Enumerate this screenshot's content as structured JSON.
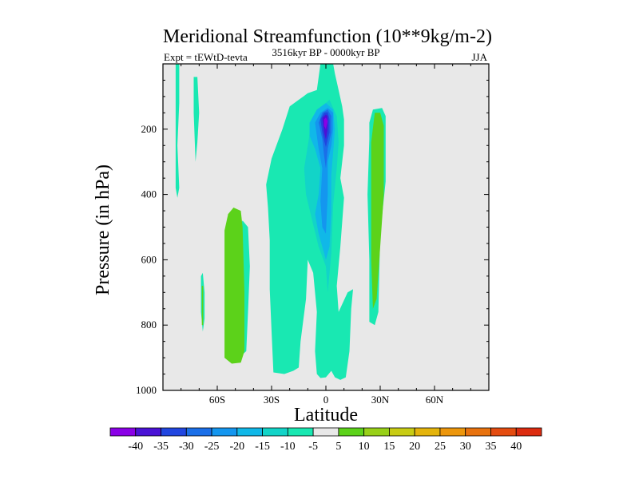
{
  "chart_data": {
    "type": "heatmap",
    "title": "Meridional Streamfunction (10**9kg/m-2)",
    "subtitle_left": "Expt = tEWtD-tevta",
    "subtitle_center": "3516kyr BP - 0000kyr BP",
    "subtitle_right": "JJA",
    "xlabel": "Latitude",
    "ylabel": "Pressure (in hPa)",
    "xlim": [
      -90,
      90
    ],
    "ylim": [
      1000,
      0
    ],
    "x_ticks": [
      {
        "value": -60,
        "label": "60S"
      },
      {
        "value": -30,
        "label": "30S"
      },
      {
        "value": 0,
        "label": "0"
      },
      {
        "value": 30,
        "label": "30N"
      },
      {
        "value": 60,
        "label": "60N"
      }
    ],
    "y_ticks": [
      {
        "value": 200,
        "label": "200"
      },
      {
        "value": 400,
        "label": "400"
      },
      {
        "value": 600,
        "label": "600"
      },
      {
        "value": 800,
        "label": "800"
      },
      {
        "value": 1000,
        "label": "1000"
      }
    ],
    "colorbar": {
      "levels": [
        -40,
        -35,
        -30,
        -25,
        -20,
        -15,
        -10,
        -5,
        5,
        10,
        15,
        20,
        25,
        30,
        35,
        40
      ],
      "labels": [
        "-40",
        "-35",
        "-30",
        "-25",
        "-20",
        "-15",
        "-10",
        "-5",
        "5",
        "10",
        "15",
        "20",
        "25",
        "30",
        "35",
        "40"
      ],
      "colors": [
        "#8a00e6",
        "#4a12d6",
        "#2146e0",
        "#1b6fe8",
        "#1496ef",
        "#10b8e8",
        "#12d4c8",
        "#19e8b2",
        "#e8e8e8",
        "#5cd21a",
        "#98d018",
        "#c8cc14",
        "#e4b40c",
        "#ec960c",
        "#e8720e",
        "#e44c10",
        "#dc2c10"
      ]
    },
    "regions": [
      {
        "name": "band-lon-80-neg5",
        "level": -5,
        "points": [
          [
            -83,
            0
          ],
          [
            -81,
            0
          ],
          [
            -81,
            120
          ],
          [
            -82,
            250
          ],
          [
            -81,
            380
          ],
          [
            -82,
            410
          ],
          [
            -83,
            380
          ],
          [
            -83,
            200
          ]
        ]
      },
      {
        "name": "band-lon-72-neg5",
        "level": -5,
        "points": [
          [
            -73,
            40
          ],
          [
            -71,
            40
          ],
          [
            -70,
            150
          ],
          [
            -71,
            240
          ],
          [
            -72,
            300
          ],
          [
            -73,
            150
          ]
        ]
      },
      {
        "name": "band-lon-68-neg5",
        "level": -5,
        "points": [
          [
            -69,
            650
          ],
          [
            -68,
            640
          ],
          [
            -67,
            700
          ],
          [
            -67,
            780
          ],
          [
            -68,
            820
          ],
          [
            -69,
            760
          ]
        ]
      },
      {
        "name": "band-lon-68-pos5",
        "level": 5,
        "points": [
          [
            -68.5,
            680
          ],
          [
            -67.8,
            680
          ],
          [
            -67.8,
            800
          ],
          [
            -68.5,
            800
          ]
        ]
      },
      {
        "name": "sh-low-neg5",
        "level": -5,
        "points": [
          [
            -55,
            660
          ],
          [
            -50,
            520
          ],
          [
            -46,
            480
          ],
          [
            -43,
            500
          ],
          [
            -42,
            620
          ],
          [
            -43,
            760
          ],
          [
            -44,
            880
          ],
          [
            -48,
            900
          ],
          [
            -53,
            905
          ],
          [
            -55,
            850
          ]
        ]
      },
      {
        "name": "sh-positive-cell",
        "level": 5,
        "points": [
          [
            -56,
            510
          ],
          [
            -54,
            460
          ],
          [
            -51,
            440
          ],
          [
            -47,
            450
          ],
          [
            -46,
            500
          ],
          [
            -45,
            700
          ],
          [
            -45,
            880
          ],
          [
            -47,
            915
          ],
          [
            -52,
            918
          ],
          [
            -56,
            900
          ],
          [
            -56,
            700
          ]
        ]
      },
      {
        "name": "sh-mid-neg5",
        "level": -5,
        "points": [
          [
            -33,
            370
          ],
          [
            -30,
            290
          ],
          [
            -24,
            200
          ],
          [
            -20,
            130
          ],
          [
            -15,
            110
          ],
          [
            -10,
            90
          ],
          [
            -5,
            80
          ],
          [
            -3,
            0
          ],
          [
            4,
            0
          ],
          [
            5,
            30
          ],
          [
            7,
            80
          ],
          [
            9,
            130
          ],
          [
            10,
            170
          ],
          [
            10,
            250
          ],
          [
            8,
            350
          ],
          [
            10,
            410
          ],
          [
            8,
            560
          ],
          [
            6,
            680
          ],
          [
            7,
            760
          ],
          [
            12,
            700
          ],
          [
            15,
            690
          ],
          [
            14,
            750
          ],
          [
            13,
            880
          ],
          [
            11,
            960
          ],
          [
            8,
            968
          ],
          [
            5,
            960
          ],
          [
            3,
            940
          ],
          [
            0,
            960
          ],
          [
            -3,
            962
          ],
          [
            -5,
            950
          ],
          [
            -6,
            880
          ],
          [
            -5,
            760
          ],
          [
            -7,
            640
          ],
          [
            -10,
            600
          ],
          [
            -11,
            720
          ],
          [
            -14,
            850
          ],
          [
            -15,
            930
          ],
          [
            -18,
            940
          ],
          [
            -23,
            950
          ],
          [
            -29,
            945
          ],
          [
            -30,
            820
          ],
          [
            -31,
            690
          ],
          [
            -31,
            540
          ],
          [
            -32,
            440
          ]
        ]
      },
      {
        "name": "tropic-neg10",
        "level": -10,
        "points": [
          [
            -12,
            320
          ],
          [
            -8,
            180
          ],
          [
            -4,
            140
          ],
          [
            2,
            110
          ],
          [
            6,
            160
          ],
          [
            7,
            240
          ],
          [
            6,
            320
          ],
          [
            4,
            430
          ],
          [
            3,
            580
          ],
          [
            1,
            700
          ],
          [
            0,
            620
          ],
          [
            -4,
            560
          ],
          [
            -8,
            470
          ],
          [
            -11,
            400
          ]
        ]
      },
      {
        "name": "tropic-neg15",
        "level": -15,
        "points": [
          [
            -9,
            180
          ],
          [
            -5,
            140
          ],
          [
            0,
            120
          ],
          [
            4,
            140
          ],
          [
            5,
            200
          ],
          [
            4,
            270
          ],
          [
            3,
            340
          ],
          [
            3,
            450
          ],
          [
            2,
            560
          ],
          [
            0,
            600
          ],
          [
            -2,
            560
          ],
          [
            -4,
            520
          ],
          [
            -6,
            460
          ],
          [
            -4,
            400
          ],
          [
            -3,
            320
          ],
          [
            -6,
            260
          ],
          [
            -9,
            220
          ]
        ]
      },
      {
        "name": "tropic-neg20",
        "level": -20,
        "points": [
          [
            -6,
            180
          ],
          [
            -3,
            150
          ],
          [
            1,
            135
          ],
          [
            4,
            150
          ],
          [
            4,
            200
          ],
          [
            3,
            250
          ],
          [
            1,
            300
          ],
          [
            1,
            400
          ],
          [
            0,
            520
          ],
          [
            -2,
            500
          ],
          [
            -3,
            420
          ],
          [
            -2,
            320
          ],
          [
            -4,
            260
          ]
        ]
      },
      {
        "name": "tropic-neg25",
        "level": -25,
        "points": [
          [
            -4,
            180
          ],
          [
            -2,
            150
          ],
          [
            1,
            140
          ],
          [
            3,
            160
          ],
          [
            3,
            210
          ],
          [
            1,
            260
          ],
          [
            0,
            320
          ],
          [
            -1,
            280
          ],
          [
            -2,
            230
          ]
        ]
      },
      {
        "name": "tropic-neg30",
        "level": -30,
        "points": [
          [
            -3,
            170
          ],
          [
            -1,
            150
          ],
          [
            1,
            148
          ],
          [
            2,
            170
          ],
          [
            2,
            210
          ],
          [
            0,
            255
          ],
          [
            -1,
            235
          ],
          [
            -2,
            210
          ]
        ]
      },
      {
        "name": "tropic-neg35",
        "level": -35,
        "points": [
          [
            -2,
            165
          ],
          [
            0,
            155
          ],
          [
            1,
            160
          ],
          [
            1,
            200
          ],
          [
            0,
            232
          ],
          [
            -1,
            210
          ]
        ]
      },
      {
        "name": "tropic-neg40",
        "level": -40,
        "points": [
          [
            -1,
            170
          ],
          [
            0,
            164
          ],
          [
            1,
            175
          ],
          [
            0,
            200
          ],
          [
            -1,
            190
          ]
        ]
      },
      {
        "name": "nh-neg5-band",
        "level": -5,
        "points": [
          [
            24,
            230
          ],
          [
            24,
            180
          ],
          [
            26,
            140
          ],
          [
            31,
            135
          ],
          [
            33,
            160
          ],
          [
            33,
            360
          ],
          [
            30,
            520
          ],
          [
            29,
            760
          ],
          [
            27,
            800
          ],
          [
            24,
            790
          ],
          [
            24,
            600
          ],
          [
            23,
            400
          ]
        ]
      },
      {
        "name": "nh-positive-cell",
        "level": 5,
        "points": [
          [
            25,
            360
          ],
          [
            25,
            240
          ],
          [
            27,
            150
          ],
          [
            30,
            150
          ],
          [
            32,
            190
          ],
          [
            32,
            400
          ],
          [
            30,
            560
          ],
          [
            28,
            720
          ],
          [
            26,
            750
          ],
          [
            25,
            600
          ]
        ]
      }
    ]
  }
}
